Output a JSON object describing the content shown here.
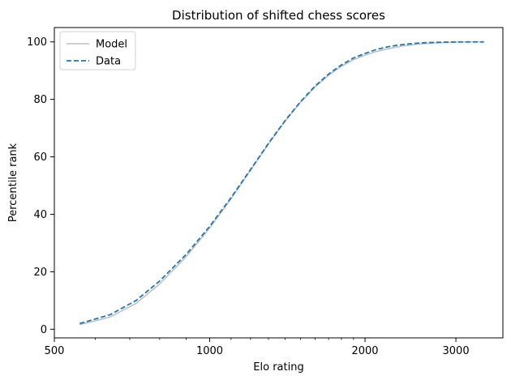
{
  "chart_data": {
    "type": "line",
    "title": "Distribution of shifted chess scores",
    "xlabel": "Elo rating",
    "ylabel": "Percentile rank",
    "xscale": "log",
    "xlim": [
      500,
      3700
    ],
    "ylim": [
      -3,
      105
    ],
    "xticks": [
      500,
      1000,
      2000,
      3000
    ],
    "xtick_labels": [
      "500",
      "1000",
      "2000",
      "3000"
    ],
    "yticks": [
      0,
      20,
      40,
      60,
      80,
      100
    ],
    "ytick_labels": [
      "0",
      "20",
      "40",
      "60",
      "80",
      "100"
    ],
    "grid": false,
    "legend_position": "upper-left",
    "series": [
      {
        "name": "Model",
        "style": "solid",
        "color": "#c0c0c0",
        "x": [
          560,
          640,
          720,
          800,
          900,
          1000,
          1100,
          1200,
          1300,
          1400,
          1500,
          1600,
          1700,
          1800,
          1900,
          2000,
          2100,
          2200,
          2300,
          2400,
          2500,
          2600,
          2800,
          3000,
          3200,
          3400
        ],
        "y": [
          1.6,
          4.2,
          9.0,
          15.8,
          25.2,
          35.2,
          45.4,
          55.3,
          64.5,
          72.4,
          79.0,
          84.3,
          88.4,
          91.5,
          93.8,
          95.4,
          96.6,
          97.5,
          98.2,
          98.7,
          99.1,
          99.4,
          99.7,
          99.9,
          100.0,
          100.0
        ]
      },
      {
        "name": "Data",
        "style": "dashed",
        "color": "#1f77b4",
        "x": [
          560,
          640,
          720,
          800,
          900,
          1000,
          1100,
          1200,
          1300,
          1400,
          1500,
          1600,
          1700,
          1800,
          1900,
          2000,
          2100,
          2200,
          2300,
          2400,
          2500,
          2600,
          2800,
          3000,
          3200,
          3400
        ],
        "y": [
          2.0,
          5.0,
          10.0,
          16.8,
          26.0,
          35.8,
          45.8,
          55.6,
          64.7,
          72.6,
          79.2,
          84.6,
          88.8,
          92.0,
          94.4,
          96.0,
          97.3,
          98.2,
          98.8,
          99.2,
          99.5,
          99.7,
          99.9,
          100.0,
          100.0,
          100.0
        ]
      }
    ]
  },
  "colors": {
    "model": "#c0c0c0",
    "data": "#1f77b4",
    "axes": "#000000"
  }
}
